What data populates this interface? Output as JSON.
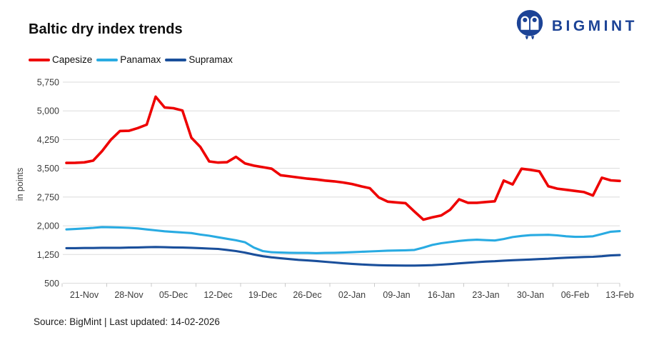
{
  "header": {
    "title": "Baltic dry index trends",
    "brand": "BIGMINT"
  },
  "legend": [
    {
      "label": "Capesize",
      "color": "#ee0000"
    },
    {
      "label": "Panamax",
      "color": "#29abe2"
    },
    {
      "label": "Supramax",
      "color": "#1a4f9b"
    }
  ],
  "chart_data": {
    "type": "line",
    "title": "Baltic dry index trends",
    "xlabel": "",
    "ylabel": "in points",
    "ylim": [
      500,
      5750
    ],
    "ytick_step": 750,
    "y_tick_labels": [
      "500",
      "1,250",
      "2,000",
      "2,750",
      "3,500",
      "4,250",
      "5,000",
      "5,750"
    ],
    "x_tick_labels": [
      "21-Nov",
      "28-Nov",
      "05-Dec",
      "12-Dec",
      "19-Dec",
      "26-Dec",
      "02-Jan",
      "09-Jan",
      "16-Jan",
      "23-Jan",
      "30-Jan",
      "06-Feb",
      "13-Feb"
    ],
    "grid": true,
    "grid_color": "#dbdbdb",
    "legend_position": "top-left",
    "series": [
      {
        "name": "Capesize",
        "color": "#ee0000",
        "values": [
          3640,
          3645,
          3655,
          3700,
          3950,
          4250,
          4475,
          4480,
          4550,
          4640,
          5370,
          5090,
          5070,
          5010,
          4300,
          4060,
          3680,
          3650,
          3660,
          3800,
          3630,
          3570,
          3530,
          3490,
          3320,
          3290,
          3260,
          3230,
          3210,
          3180,
          3160,
          3130,
          3090,
          3030,
          2980,
          2740,
          2630,
          2610,
          2590,
          2370,
          2160,
          2220,
          2270,
          2420,
          2690,
          2600,
          2600,
          2620,
          2640,
          3180,
          3080,
          3490,
          3460,
          3420,
          3030,
          2970,
          2940,
          2910,
          2880,
          2790,
          3255,
          3185,
          3170
        ]
      },
      {
        "name": "Panamax",
        "color": "#29abe2",
        "values": [
          1905,
          1915,
          1930,
          1945,
          1965,
          1960,
          1955,
          1945,
          1930,
          1905,
          1880,
          1855,
          1840,
          1825,
          1810,
          1770,
          1740,
          1700,
          1660,
          1620,
          1570,
          1430,
          1340,
          1310,
          1300,
          1295,
          1290,
          1290,
          1285,
          1290,
          1295,
          1300,
          1310,
          1320,
          1330,
          1340,
          1350,
          1355,
          1360,
          1370,
          1430,
          1500,
          1545,
          1575,
          1605,
          1625,
          1635,
          1625,
          1615,
          1655,
          1705,
          1735,
          1755,
          1760,
          1765,
          1750,
          1725,
          1710,
          1715,
          1725,
          1785,
          1845,
          1860
        ]
      },
      {
        "name": "Supramax",
        "color": "#1a4f9b",
        "values": [
          1415,
          1415,
          1420,
          1420,
          1425,
          1425,
          1425,
          1430,
          1435,
          1440,
          1445,
          1440,
          1435,
          1430,
          1425,
          1415,
          1405,
          1395,
          1370,
          1340,
          1300,
          1250,
          1205,
          1175,
          1150,
          1130,
          1110,
          1095,
          1080,
          1060,
          1040,
          1020,
          1005,
          990,
          980,
          970,
          965,
          962,
          960,
          960,
          965,
          972,
          985,
          1000,
          1018,
          1035,
          1050,
          1065,
          1075,
          1090,
          1100,
          1110,
          1120,
          1130,
          1140,
          1155,
          1165,
          1175,
          1185,
          1190,
          1205,
          1225,
          1235
        ]
      }
    ]
  },
  "footer": {
    "source_line": "Source: BigMint | Last updated: 14-02-2026"
  }
}
